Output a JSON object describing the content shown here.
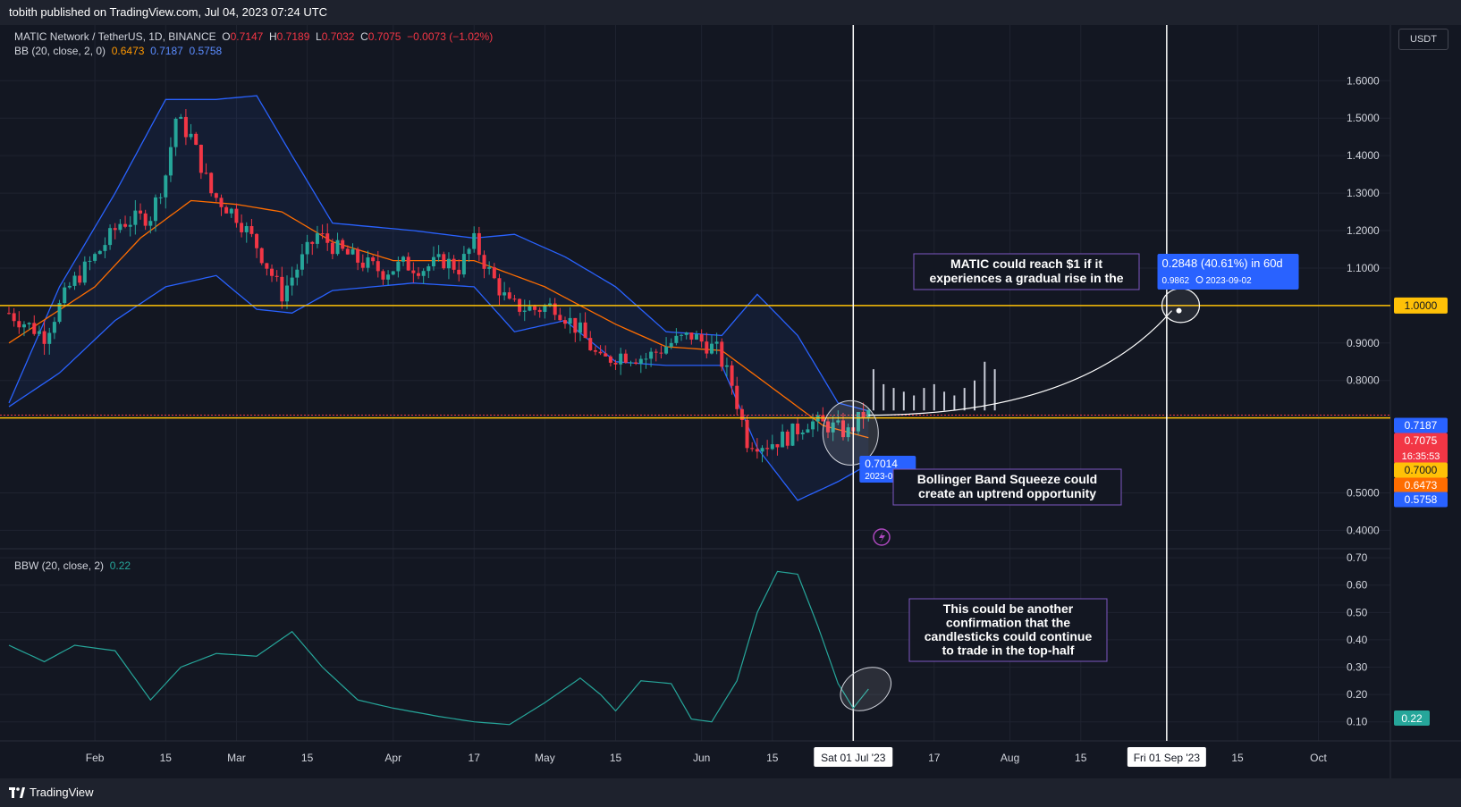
{
  "header": {
    "published": "tobith published on TradingView.com, Jul 04, 2023 07:24 UTC"
  },
  "legend": {
    "symbol": "MATIC Network / TetherUS, 1D, BINANCE",
    "o_label": "O",
    "o": "0.7147",
    "h_label": "H",
    "h": "0.7189",
    "l_label": "L",
    "l": "0.7032",
    "c_label": "C",
    "c": "0.7075",
    "change": "−0.0073 (−1.02%)",
    "bb_label": "BB (20, close, 2, 0)",
    "bb_mid": "0.6473",
    "bb_upper": "0.7187",
    "bb_lower": "0.5758",
    "bbw_label": "BBW (20, close, 2)",
    "bbw_value": "0.22"
  },
  "currency": "USDT",
  "brand": "TradingView",
  "colors": {
    "up": "#26a69a",
    "down": "#f23645",
    "bb_band": "#2962ff",
    "bb_basis": "#ff6d00",
    "level": "#ffc107",
    "bbw": "#26a69a",
    "annotation_border": "#7e57c2",
    "background": "#131722"
  },
  "chart_data": [
    {
      "type": "candlestick",
      "title": "MATIC Network / TetherUS, 1D, BINANCE",
      "ylim": [
        0.37,
        1.72
      ],
      "y_ticks": [
        "1.6000",
        "1.5000",
        "1.4000",
        "1.3000",
        "1.2000",
        "1.1000",
        "0.9000",
        "0.8000",
        "0.5000",
        "0.4000"
      ],
      "x_ticks": [
        {
          "label": "Feb",
          "date": "2023-02-01"
        },
        {
          "label": "15",
          "date": "2023-02-15"
        },
        {
          "label": "Mar",
          "date": "2023-03-01"
        },
        {
          "label": "15",
          "date": "2023-03-15"
        },
        {
          "label": "Apr",
          "date": "2023-04-01"
        },
        {
          "label": "17",
          "date": "2023-04-17"
        },
        {
          "label": "May",
          "date": "2023-05-01"
        },
        {
          "label": "15",
          "date": "2023-05-15"
        },
        {
          "label": "Jun",
          "date": "2023-06-01"
        },
        {
          "label": "15",
          "date": "2023-06-15"
        },
        {
          "label": "17",
          "date": "2023-07-17"
        },
        {
          "label": "Aug",
          "date": "2023-08-01"
        },
        {
          "label": "15",
          "date": "2023-08-15"
        },
        {
          "label": "15",
          "date": "2023-09-15"
        },
        {
          "label": "Oct",
          "date": "2023-10-01"
        }
      ],
      "x_range": [
        "2023-01-15",
        "2023-10-14"
      ],
      "price_anchors": [
        [
          "2023-01-15",
          0.98
        ],
        [
          "2023-01-22",
          0.92
        ],
        [
          "2023-01-27",
          1.05
        ],
        [
          "2023-02-01",
          1.13
        ],
        [
          "2023-02-06",
          1.22
        ],
        [
          "2023-02-12",
          1.24
        ],
        [
          "2023-02-15",
          1.35
        ],
        [
          "2023-02-17",
          1.5
        ],
        [
          "2023-02-20",
          1.45
        ],
        [
          "2023-02-24",
          1.3
        ],
        [
          "2023-03-01",
          1.24
        ],
        [
          "2023-03-05",
          1.16
        ],
        [
          "2023-03-10",
          1.03
        ],
        [
          "2023-03-13",
          1.1
        ],
        [
          "2023-03-17",
          1.19
        ],
        [
          "2023-03-21",
          1.15
        ],
        [
          "2023-03-25",
          1.12
        ],
        [
          "2023-03-30",
          1.09
        ],
        [
          "2023-04-03",
          1.11
        ],
        [
          "2023-04-07",
          1.1
        ],
        [
          "2023-04-11",
          1.12
        ],
        [
          "2023-04-14",
          1.1
        ],
        [
          "2023-04-17",
          1.17
        ],
        [
          "2023-04-20",
          1.09
        ],
        [
          "2023-04-24",
          1.0
        ],
        [
          "2023-04-29",
          0.99
        ],
        [
          "2023-05-03",
          1.0
        ],
        [
          "2023-05-08",
          0.93
        ],
        [
          "2023-05-12",
          0.85
        ],
        [
          "2023-05-16",
          0.87
        ],
        [
          "2023-05-21",
          0.86
        ],
        [
          "2023-05-26",
          0.9
        ],
        [
          "2023-05-30",
          0.92
        ],
        [
          "2023-06-04",
          0.88
        ],
        [
          "2023-06-07",
          0.79
        ],
        [
          "2023-06-10",
          0.64
        ],
        [
          "2023-06-14",
          0.63
        ],
        [
          "2023-06-18",
          0.65
        ],
        [
          "2023-06-22",
          0.69
        ],
        [
          "2023-06-26",
          0.68
        ],
        [
          "2023-06-30",
          0.66
        ],
        [
          "2023-07-03",
          0.71
        ],
        [
          "2023-07-04",
          0.7075
        ]
      ],
      "bb_upper_anchors": [
        [
          "2023-01-15",
          0.74
        ],
        [
          "2023-01-25",
          1.05
        ],
        [
          "2023-02-05",
          1.3
        ],
        [
          "2023-02-15",
          1.55
        ],
        [
          "2023-02-25",
          1.55
        ],
        [
          "2023-03-05",
          1.56
        ],
        [
          "2023-03-12",
          1.4
        ],
        [
          "2023-03-20",
          1.22
        ],
        [
          "2023-04-05",
          1.2
        ],
        [
          "2023-04-17",
          1.18
        ],
        [
          "2023-04-25",
          1.19
        ],
        [
          "2023-05-05",
          1.13
        ],
        [
          "2023-05-15",
          1.05
        ],
        [
          "2023-05-25",
          0.93
        ],
        [
          "2023-06-05",
          0.92
        ],
        [
          "2023-06-12",
          1.03
        ],
        [
          "2023-06-20",
          0.92
        ],
        [
          "2023-06-28",
          0.74
        ],
        [
          "2023-07-04",
          0.7187
        ]
      ],
      "bb_basis_anchors": [
        [
          "2023-01-15",
          0.9
        ],
        [
          "2023-02-01",
          1.05
        ],
        [
          "2023-02-10",
          1.18
        ],
        [
          "2023-02-20",
          1.28
        ],
        [
          "2023-03-01",
          1.27
        ],
        [
          "2023-03-10",
          1.25
        ],
        [
          "2023-03-20",
          1.17
        ],
        [
          "2023-04-01",
          1.12
        ],
        [
          "2023-04-17",
          1.12
        ],
        [
          "2023-05-01",
          1.05
        ],
        [
          "2023-05-15",
          0.95
        ],
        [
          "2023-05-25",
          0.89
        ],
        [
          "2023-06-05",
          0.88
        ],
        [
          "2023-06-15",
          0.78
        ],
        [
          "2023-06-25",
          0.68
        ],
        [
          "2023-07-04",
          0.6473
        ]
      ],
      "bb_lower_anchors": [
        [
          "2023-01-15",
          0.73
        ],
        [
          "2023-01-25",
          0.82
        ],
        [
          "2023-02-05",
          0.96
        ],
        [
          "2023-02-15",
          1.05
        ],
        [
          "2023-02-25",
          1.08
        ],
        [
          "2023-03-05",
          0.99
        ],
        [
          "2023-03-12",
          0.98
        ],
        [
          "2023-03-20",
          1.04
        ],
        [
          "2023-04-05",
          1.06
        ],
        [
          "2023-04-17",
          1.05
        ],
        [
          "2023-04-25",
          0.93
        ],
        [
          "2023-05-05",
          0.96
        ],
        [
          "2023-05-15",
          0.85
        ],
        [
          "2023-05-25",
          0.84
        ],
        [
          "2023-06-05",
          0.84
        ],
        [
          "2023-06-12",
          0.62
        ],
        [
          "2023-06-20",
          0.48
        ],
        [
          "2023-06-28",
          0.53
        ],
        [
          "2023-07-04",
          0.5758
        ]
      ],
      "projection_bars": [
        [
          "2023-07-05",
          0.83
        ],
        [
          "2023-07-07",
          0.79
        ],
        [
          "2023-07-09",
          0.78
        ],
        [
          "2023-07-11",
          0.77
        ],
        [
          "2023-07-13",
          0.76
        ],
        [
          "2023-07-15",
          0.78
        ],
        [
          "2023-07-17",
          0.79
        ],
        [
          "2023-07-19",
          0.77
        ],
        [
          "2023-07-21",
          0.76
        ],
        [
          "2023-07-23",
          0.78
        ],
        [
          "2023-07-25",
          0.8
        ],
        [
          "2023-07-27",
          0.85
        ],
        [
          "2023-07-29",
          0.83
        ]
      ],
      "projection_curve": {
        "from": [
          "2023-07-04",
          0.7075
        ],
        "to": [
          "2023-09-02",
          0.9862
        ]
      },
      "horizontal_levels": [
        {
          "price": 1.0,
          "label": "1.0000"
        },
        {
          "price": 0.7,
          "label": "0.7000"
        }
      ],
      "vertical_markers": [
        {
          "date": "2023-07-01",
          "label": "Sat 01 Jul '23"
        },
        {
          "date": "2023-09-01",
          "label": "Fri 01 Sep '23"
        }
      ],
      "price_labels": [
        {
          "price": 0.7187,
          "text": "0.7187",
          "color": "#2962ff"
        },
        {
          "price": 0.7075,
          "text": "0.7075",
          "sub": "16:35:53",
          "color": "#f23645"
        },
        {
          "price": 0.7,
          "text": "0.7000",
          "color": "#ffc107"
        },
        {
          "price": 0.6473,
          "text": "0.6473",
          "color": "#ff6d00"
        },
        {
          "price": 0.5758,
          "text": "0.5758",
          "color": "#2962ff"
        }
      ],
      "callouts": [
        {
          "id": "current",
          "value": "0.7014",
          "date": "2023-07-04"
        },
        {
          "id": "target",
          "value": "0.2848 (40.61%) in 60d",
          "sub_value": "0.9862",
          "sub_date": "2023-09-02"
        }
      ],
      "annotations": [
        {
          "id": "matic-note",
          "lines": [
            "MATIC could reach $1 if it",
            "experiences a gradual rise in the"
          ]
        },
        {
          "id": "squeeze-note",
          "lines": [
            "Bollinger Band Squeeze could",
            "create an uptrend opportunity"
          ]
        }
      ]
    },
    {
      "type": "line",
      "title": "BBW (20, close, 2)",
      "ylim": [
        0.05,
        0.72
      ],
      "y_ticks": [
        "0.70",
        "0.60",
        "0.50",
        "0.40",
        "0.30",
        "0.20",
        "0.10"
      ],
      "current_label": "0.22",
      "series": [
        {
          "values": [
            [
              "2023-01-15",
              0.38
            ],
            [
              "2023-01-22",
              0.32
            ],
            [
              "2023-01-28",
              0.38
            ],
            [
              "2023-02-05",
              0.36
            ],
            [
              "2023-02-12",
              0.18
            ],
            [
              "2023-02-18",
              0.3
            ],
            [
              "2023-02-25",
              0.35
            ],
            [
              "2023-03-05",
              0.34
            ],
            [
              "2023-03-12",
              0.43
            ],
            [
              "2023-03-18",
              0.3
            ],
            [
              "2023-03-25",
              0.18
            ],
            [
              "2023-04-01",
              0.15
            ],
            [
              "2023-04-10",
              0.12
            ],
            [
              "2023-04-17",
              0.1
            ],
            [
              "2023-04-24",
              0.09
            ],
            [
              "2023-05-01",
              0.17
            ],
            [
              "2023-05-08",
              0.26
            ],
            [
              "2023-05-12",
              0.2
            ],
            [
              "2023-05-15",
              0.14
            ],
            [
              "2023-05-20",
              0.25
            ],
            [
              "2023-05-26",
              0.24
            ],
            [
              "2023-05-30",
              0.11
            ],
            [
              "2023-06-03",
              0.1
            ],
            [
              "2023-06-08",
              0.25
            ],
            [
              "2023-06-12",
              0.5
            ],
            [
              "2023-06-16",
              0.65
            ],
            [
              "2023-06-20",
              0.64
            ],
            [
              "2023-06-24",
              0.45
            ],
            [
              "2023-06-28",
              0.24
            ],
            [
              "2023-07-01",
              0.15
            ],
            [
              "2023-07-04",
              0.22
            ]
          ]
        }
      ],
      "annotations": [
        {
          "id": "bbw-note",
          "lines": [
            "This could be another",
            "confirmation that the",
            "candlesticks could continue",
            "to trade in the top-half"
          ]
        }
      ]
    }
  ]
}
